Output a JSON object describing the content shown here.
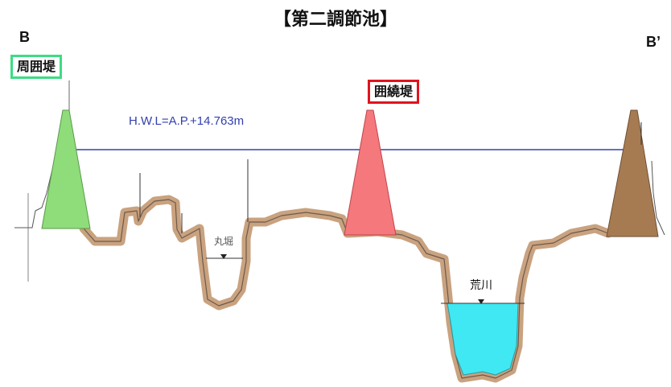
{
  "title": "【第二調節池】",
  "point_start": "B",
  "point_end": "B’",
  "levee_perimeter": {
    "label": "周囲堤",
    "border_color": "#3ddc84",
    "fill": "#8fdc7a"
  },
  "levee_surround": {
    "label": "囲繞堤",
    "border_color": "#e0141e",
    "fill": "#f4787c"
  },
  "levee_right": {
    "fill": "#a77b52"
  },
  "water_level": {
    "label": "H.W.L=A.P.+14.763m",
    "color": "#3340b0"
  },
  "marubori": {
    "label": "丸堀"
  },
  "arakawa": {
    "label": "荒川",
    "water_color": "#3fe8f2"
  },
  "ground_color": "#c9a27f"
}
